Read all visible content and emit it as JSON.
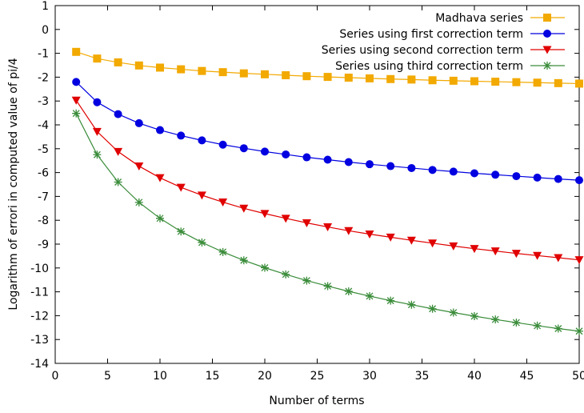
{
  "chart_data": {
    "type": "line",
    "xlabel": "Number of terms",
    "ylabel": "Logarithm of errori in computed value of pi/4",
    "xlim": [
      0,
      50
    ],
    "ylim": [
      -14,
      1
    ],
    "xticks": [
      0,
      5,
      10,
      15,
      20,
      25,
      30,
      35,
      40,
      45,
      50
    ],
    "yticks": [
      1,
      0,
      -1,
      -2,
      -3,
      -4,
      -5,
      -6,
      -7,
      -8,
      -9,
      -10,
      -11,
      -12,
      -13,
      -14
    ],
    "grid": false,
    "legend_position": "top-right",
    "x": [
      2,
      4,
      6,
      8,
      10,
      12,
      14,
      16,
      18,
      20,
      22,
      24,
      26,
      28,
      30,
      32,
      34,
      36,
      38,
      40,
      42,
      44,
      46,
      48,
      50
    ],
    "series": [
      {
        "name": "Madhava series",
        "color": "#f2a900",
        "marker": "square",
        "values": [
          -0.94,
          -1.22,
          -1.38,
          -1.51,
          -1.6,
          -1.67,
          -1.74,
          -1.79,
          -1.84,
          -1.88,
          -1.92,
          -1.96,
          -1.99,
          -2.02,
          -2.05,
          -2.08,
          -2.1,
          -2.13,
          -2.15,
          -2.17,
          -2.19,
          -2.21,
          -2.23,
          -2.25,
          -2.27
        ]
      },
      {
        "name": "Series using first correction term",
        "color": "#0000e0",
        "marker": "circle",
        "values": [
          -2.2,
          -3.05,
          -3.55,
          -3.93,
          -4.22,
          -4.45,
          -4.65,
          -4.83,
          -4.98,
          -5.12,
          -5.24,
          -5.36,
          -5.46,
          -5.56,
          -5.65,
          -5.73,
          -5.81,
          -5.89,
          -5.96,
          -6.03,
          -6.09,
          -6.15,
          -6.21,
          -6.27,
          -6.32
        ]
      },
      {
        "name": "Series using second correction term",
        "color": "#e00000",
        "marker": "triangle-down",
        "values": [
          -2.97,
          -4.28,
          -5.12,
          -5.73,
          -6.22,
          -6.62,
          -6.95,
          -7.24,
          -7.5,
          -7.72,
          -7.92,
          -8.11,
          -8.28,
          -8.44,
          -8.58,
          -8.71,
          -8.84,
          -8.96,
          -9.08,
          -9.19,
          -9.29,
          -9.39,
          -9.48,
          -9.57,
          -9.66
        ]
      },
      {
        "name": "Series using third correction term",
        "color": "#3a8c3a",
        "marker": "asterisk",
        "values": [
          -3.52,
          -5.25,
          -6.4,
          -7.25,
          -7.92,
          -8.47,
          -8.93,
          -9.33,
          -9.68,
          -9.99,
          -10.27,
          -10.53,
          -10.76,
          -10.98,
          -11.18,
          -11.37,
          -11.54,
          -11.71,
          -11.87,
          -12.02,
          -12.16,
          -12.29,
          -12.42,
          -12.54,
          -12.65
        ]
      }
    ]
  }
}
